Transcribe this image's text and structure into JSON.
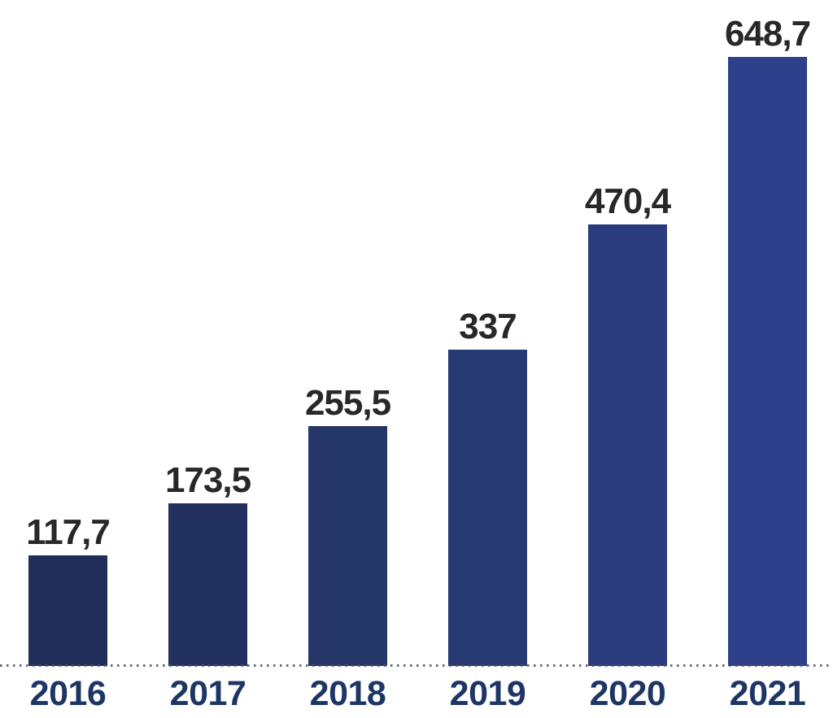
{
  "chart_data": {
    "type": "bar",
    "title": "",
    "xlabel": "",
    "ylabel": "",
    "categories": [
      "2016",
      "2017",
      "2018",
      "2019",
      "2020",
      "2021"
    ],
    "values": [
      117.7,
      173.5,
      255.5,
      337,
      470.4,
      648.7
    ],
    "value_labels": [
      "117,7",
      "173,5",
      "255,5",
      "337",
      "470,4",
      "648,7"
    ],
    "decimal_separator": ",",
    "ylim": [
      0,
      700
    ],
    "grid": false,
    "legend": false,
    "axis_line_style": "dotted",
    "colors": {
      "bar_colors": [
        "#212e59",
        "#233160",
        "#253768",
        "#283a74",
        "#2a3c7d",
        "#2d4089"
      ],
      "value_label_color": "#282828",
      "category_label_color": "#1e3666",
      "baseline_dot_color": "#4b5060",
      "background": "#ffffff"
    }
  }
}
